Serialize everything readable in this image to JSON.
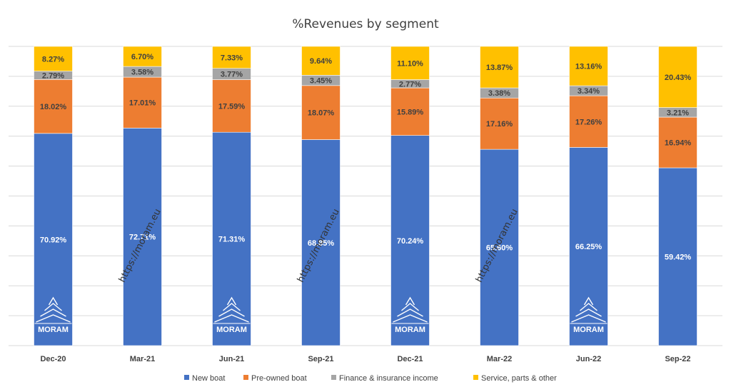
{
  "chart_data": {
    "type": "bar",
    "stacked": true,
    "percent_stacked": true,
    "title": "%Revenues by segment",
    "categories": [
      "Dec-20",
      "Mar-21",
      "Jun-21",
      "Sep-21",
      "Dec-21",
      "Mar-22",
      "Jun-22",
      "Sep-22"
    ],
    "series": [
      {
        "name": "New boat",
        "color": "#4472C4",
        "values": [
          70.92,
          72.71,
          71.31,
          68.85,
          70.24,
          65.6,
          66.25,
          59.42
        ],
        "labels": [
          "70.92%",
          "72.71%",
          "71.31%",
          "68.85%",
          "70.24%",
          "65.60%",
          "66.25%",
          "59.42%"
        ]
      },
      {
        "name": "Pre-owned boat",
        "color": "#ED7D31",
        "values": [
          18.02,
          17.01,
          17.59,
          18.07,
          15.89,
          17.16,
          17.26,
          16.94
        ],
        "labels": [
          "18.02%",
          "17.01%",
          "17.59%",
          "18.07%",
          "15.89%",
          "17.16%",
          "17.26%",
          "16.94%"
        ]
      },
      {
        "name": "Finance & insurance income",
        "color": "#A5A5A5",
        "values": [
          2.79,
          3.58,
          3.77,
          3.45,
          2.77,
          3.38,
          3.34,
          3.21
        ],
        "labels": [
          "2.79%",
          "3.58%",
          "3.77%",
          "3.45%",
          "2.77%",
          "3.38%",
          "3.34%",
          "3.21%"
        ]
      },
      {
        "name": "Service, parts & other",
        "color": "#FFC000",
        "values": [
          8.27,
          6.7,
          7.33,
          9.64,
          11.1,
          13.87,
          13.16,
          20.43
        ],
        "labels": [
          "8.27%",
          "6.70%",
          "7.33%",
          "9.64%",
          "11.10%",
          "13.87%",
          "13.16%",
          "20.43%"
        ]
      }
    ],
    "ylim": [
      0,
      100
    ],
    "grid": true,
    "legend_position": "bottom"
  },
  "watermark": {
    "text": "https://moram.eu"
  },
  "logo": {
    "text": "MORAM"
  }
}
